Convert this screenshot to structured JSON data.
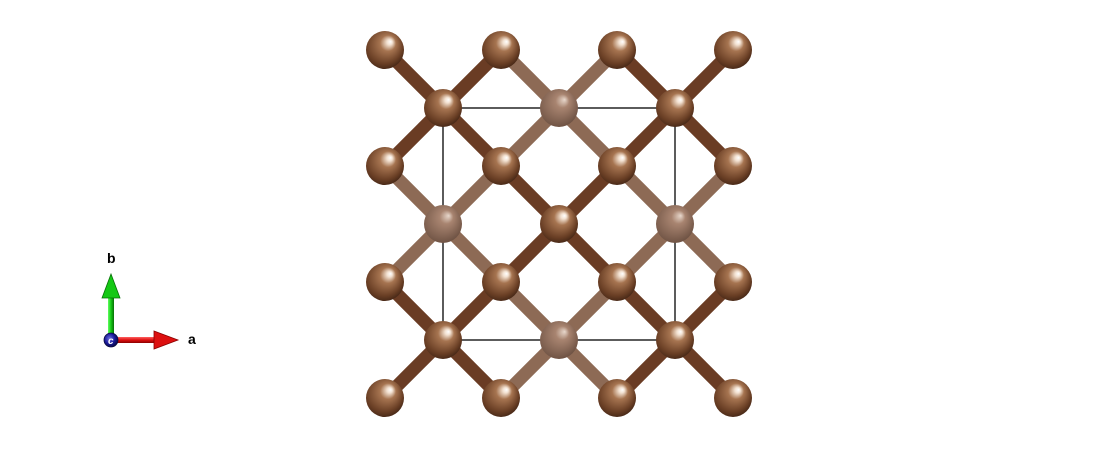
{
  "scene": {
    "description_type": "crystal-structure-view",
    "background_color": "#ffffff"
  },
  "colors": {
    "atom_front": "#9a6a4a",
    "atom_back": "#8a6a55",
    "bond_front": "#6a3c24",
    "bond_back": "#8d6a55",
    "cell_edge": "#333333",
    "axis_a": "#e01010",
    "axis_b": "#10c010",
    "axis_c": "#1a1a9a"
  },
  "axes": {
    "a_label": "a",
    "b_label": "b",
    "c_label": "c"
  }
}
